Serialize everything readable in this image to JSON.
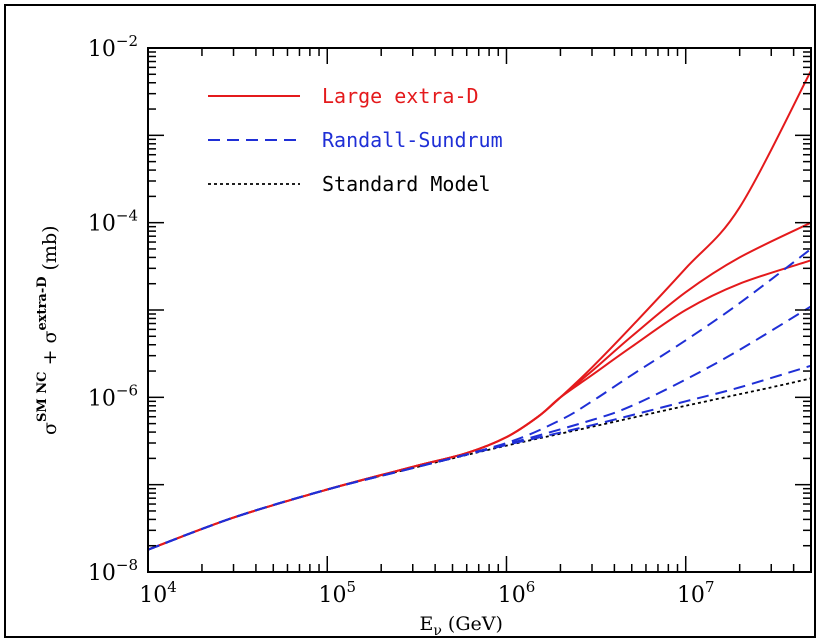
{
  "chart_data": {
    "type": "line",
    "title": "",
    "xlabel": {
      "main": "E",
      "sub": "ν",
      "rest": " (GeV)"
    },
    "ylabel": {
      "sigma1": "σ",
      "sup1": "SM NC",
      "plus": " + ",
      "sigma2": "σ",
      "sup2": "extra-D",
      "unit": " (mb)"
    },
    "xscale": "log",
    "yscale": "log",
    "xlim": [
      10000,
      50000000
    ],
    "ylim": [
      1e-08,
      0.01
    ],
    "x_ticks": [
      {
        "value": 10000,
        "base": "10",
        "exp": "4"
      },
      {
        "value": 100000,
        "base": "10",
        "exp": "5"
      },
      {
        "value": 1000000,
        "base": "10",
        "exp": "6"
      },
      {
        "value": 10000000,
        "base": "10",
        "exp": "7"
      }
    ],
    "y_ticks": [
      {
        "value": 1e-08,
        "base": "10",
        "exp": "−8"
      },
      {
        "value": 1e-06,
        "base": "10",
        "exp": "−6"
      },
      {
        "value": 0.0001,
        "base": "10",
        "exp": "−4"
      },
      {
        "value": 0.01,
        "base": "10",
        "exp": "−2"
      }
    ],
    "grid": false,
    "legend_position": "top-left",
    "legend": [
      {
        "label": "Large extra-D",
        "color": "#e41a1c",
        "style": "solid"
      },
      {
        "label": "Randall-Sundrum",
        "color": "#1f2fd6",
        "style": "dashed"
      },
      {
        "label": "Standard Model",
        "color": "#000000",
        "style": "dotted"
      }
    ],
    "series": [
      {
        "group": "Standard Model",
        "color": "#000000",
        "style": "dotted",
        "x": [
          10000,
          30000,
          100000,
          300000,
          1000000,
          3000000,
          10000000,
          30000000,
          50000000
        ],
        "y": [
          1.8e-08,
          4.2e-08,
          8.8e-08,
          1.55e-07,
          2.8e-07,
          4.6e-07,
          8e-07,
          1.3e-06,
          1.65e-06
        ]
      },
      {
        "group": "Large extra-D",
        "color": "#e41a1c",
        "style": "solid",
        "x": [
          10000,
          30000,
          100000,
          300000,
          600000,
          1000000,
          1500000,
          2000000,
          3000000,
          5000000,
          10000000,
          20000000,
          50000000
        ],
        "y": [
          1.8e-08,
          4.2e-08,
          8.8e-08,
          1.6e-07,
          2.3e-07,
          3.5e-07,
          6e-07,
          1e-06,
          2.2e-06,
          6.5e-06,
          3e-05,
          0.00015,
          0.0055
        ]
      },
      {
        "group": "Large extra-D",
        "color": "#e41a1c",
        "style": "solid",
        "x": [
          10000,
          30000,
          100000,
          300000,
          600000,
          1000000,
          1500000,
          2000000,
          3000000,
          5000000,
          10000000,
          20000000,
          50000000
        ],
        "y": [
          1.8e-08,
          4.2e-08,
          8.8e-08,
          1.6e-07,
          2.3e-07,
          3.5e-07,
          6e-07,
          1e-06,
          2e-06,
          5e-06,
          1.6e-05,
          4e-05,
          0.0001
        ]
      },
      {
        "group": "Large extra-D",
        "color": "#e41a1c",
        "style": "solid",
        "x": [
          10000,
          30000,
          100000,
          300000,
          600000,
          1000000,
          1500000,
          2000000,
          3000000,
          5000000,
          10000000,
          20000000,
          50000000
        ],
        "y": [
          1.8e-08,
          4.2e-08,
          8.8e-08,
          1.6e-07,
          2.3e-07,
          3.5e-07,
          6e-07,
          1e-06,
          1.8e-06,
          3.8e-06,
          1e-05,
          2e-05,
          3.7e-05
        ]
      },
      {
        "group": "Randall-Sundrum",
        "color": "#1f2fd6",
        "style": "dashed",
        "x": [
          10000,
          30000,
          100000,
          300000,
          1000000,
          2000000,
          3000000,
          5000000,
          10000000,
          20000000,
          50000000
        ],
        "y": [
          1.8e-08,
          4.2e-08,
          8.8e-08,
          1.55e-07,
          3e-07,
          5.5e-07,
          9e-07,
          1.8e-06,
          4.5e-06,
          1.2e-05,
          5e-05
        ]
      },
      {
        "group": "Randall-Sundrum",
        "color": "#1f2fd6",
        "style": "dashed",
        "x": [
          10000,
          30000,
          100000,
          300000,
          1000000,
          3000000,
          5000000,
          10000000,
          20000000,
          50000000
        ],
        "y": [
          1.8e-08,
          4.2e-08,
          8.8e-08,
          1.55e-07,
          2.9e-07,
          5.5e-07,
          8e-07,
          1.6e-06,
          3.5e-06,
          1.1e-05
        ]
      },
      {
        "group": "Randall-Sundrum",
        "color": "#1f2fd6",
        "style": "dashed",
        "x": [
          10000,
          30000,
          100000,
          300000,
          1000000,
          3000000,
          10000000,
          20000000,
          50000000
        ],
        "y": [
          1.8e-08,
          4.2e-08,
          8.8e-08,
          1.55e-07,
          2.85e-07,
          4.8e-07,
          9e-07,
          1.3e-06,
          2.3e-06
        ]
      }
    ]
  }
}
